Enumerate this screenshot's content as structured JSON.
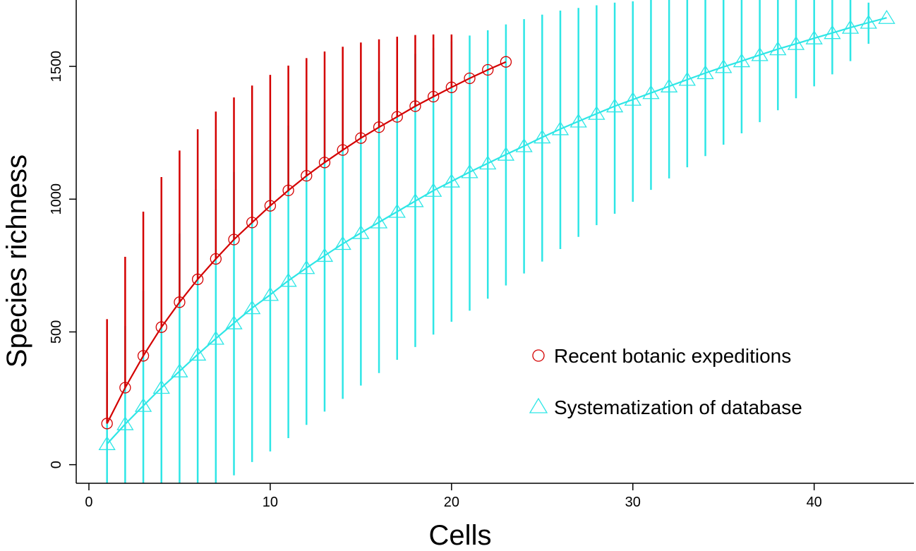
{
  "chart_data": {
    "type": "line",
    "xlabel": "Cells",
    "ylabel": "Species richness",
    "xlim": [
      -0.7,
      45.5
    ],
    "ylim": [
      -70,
      1750
    ],
    "xticks": [
      0,
      10,
      20,
      30,
      40
    ],
    "yticks": [
      0,
      500,
      1000,
      1500
    ],
    "legend_position": "bottom-right",
    "series": [
      {
        "name": "Recent botanic expeditions",
        "color": "#d40000",
        "marker": "circle",
        "x": [
          1,
          2,
          3,
          4,
          5,
          6,
          7,
          8,
          9,
          10,
          11,
          12,
          13,
          14,
          15,
          16,
          17,
          18,
          19,
          20,
          21,
          22,
          23
        ],
        "y": [
          155,
          290,
          410,
          518,
          612,
          698,
          775,
          848,
          912,
          975,
          1033,
          1088,
          1138,
          1185,
          1230,
          1271,
          1310,
          1350,
          1386,
          1421,
          1455,
          1487,
          1517
        ],
        "upper": [
          548,
          783,
          953,
          1083,
          1183,
          1263,
          1330,
          1383,
          1428,
          1468,
          1503,
          1531,
          1556,
          1574,
          1590,
          1602,
          1612,
          1618,
          1620,
          1620,
          null,
          null,
          null
        ]
      },
      {
        "name": "Systematization of database",
        "color": "#2ee6e6",
        "marker": "triangle",
        "x": [
          1,
          2,
          3,
          4,
          5,
          6,
          7,
          8,
          9,
          10,
          11,
          12,
          13,
          14,
          15,
          16,
          17,
          18,
          19,
          20,
          21,
          22,
          23,
          24,
          25,
          26,
          27,
          28,
          29,
          30,
          31,
          32,
          33,
          34,
          35,
          36,
          37,
          38,
          39,
          40,
          41,
          42,
          43,
          44
        ],
        "y": [
          78,
          153,
          222,
          290,
          352,
          415,
          475,
          533,
          590,
          640,
          693,
          741,
          787,
          832,
          873,
          913,
          953,
          993,
          1032,
          1067,
          1102,
          1135,
          1168,
          1200,
          1233,
          1264,
          1293,
          1322,
          1350,
          1375,
          1400,
          1425,
          1450,
          1475,
          1498,
          1520,
          1543,
          1565,
          1585,
          1606,
          1626,
          1646,
          1665,
          1683
        ],
        "upper": [
          350,
          522,
          655,
          768,
          870,
          958,
          1038,
          1102,
          1165,
          1222,
          1277,
          1328,
          1374,
          1412,
          1446,
          1482,
          1517,
          1547,
          1570,
          1594,
          1616,
          1636,
          1658,
          1678,
          1695,
          1710,
          1720,
          1730,
          1740,
          1745,
          1750,
          1750,
          1750,
          1750,
          1750,
          1750,
          1750,
          1750,
          1750,
          1750,
          1750,
          1750,
          1740,
          null
        ],
        "lower": [
          -70,
          -70,
          -70,
          -70,
          -70,
          -70,
          -70,
          -40,
          10,
          50,
          100,
          150,
          200,
          248,
          298,
          345,
          395,
          443,
          490,
          538,
          580,
          625,
          675,
          720,
          765,
          812,
          858,
          902,
          945,
          990,
          1035,
          1078,
          1120,
          1162,
          1205,
          1248,
          1290,
          1335,
          1380,
          1425,
          1470,
          1520,
          1585,
          null
        ]
      }
    ]
  }
}
